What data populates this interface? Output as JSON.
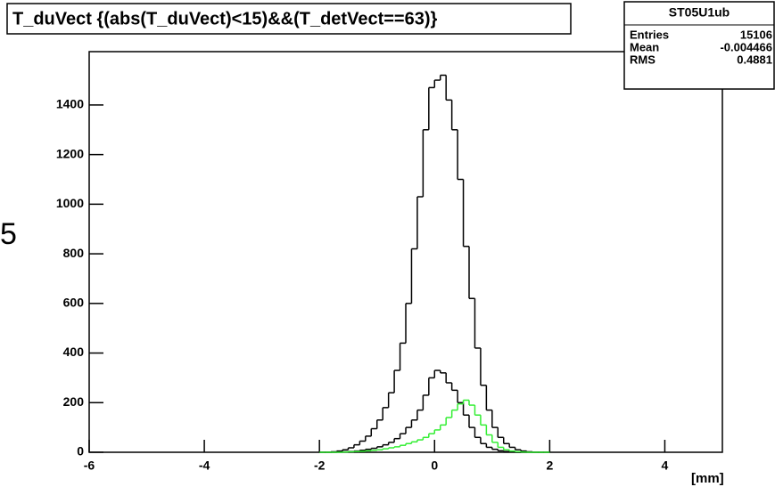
{
  "chart_data": {
    "type": "histogram",
    "title": "T_duVect {(abs(T_duVect)<15)&&(T_detVect==63)}",
    "side_text": "5",
    "x_label": "[mm]",
    "stats": {
      "name": "ST05U1ub",
      "rows": [
        [
          "Entries",
          "15106"
        ],
        [
          "Mean",
          "-0.004466"
        ],
        [
          "RMS",
          "0.4881"
        ]
      ]
    },
    "xlim": [
      -6,
      5
    ],
    "xticks": [
      -6,
      -4,
      -2,
      0,
      2,
      4
    ],
    "ylim": [
      0,
      1615
    ],
    "yticks": [
      0,
      200,
      400,
      600,
      800,
      1000,
      1200,
      1400
    ],
    "bins": [
      -2,
      -1.9,
      -1.8,
      -1.7,
      -1.6,
      -1.5,
      -1.4,
      -1.3,
      -1.2,
      -1.1,
      -1,
      -0.9,
      -0.8,
      -0.7,
      -0.6,
      -0.5,
      -0.4,
      -0.3,
      -0.2,
      -0.1,
      0,
      0.1,
      0.2,
      0.3,
      0.4,
      0.5,
      0.6,
      0.7,
      0.8,
      0.9,
      1,
      1.1,
      1.2,
      1.3,
      1.4,
      1.5,
      1.6,
      1.7,
      1.8,
      1.9,
      2
    ],
    "series": [
      {
        "color": "#000000",
        "values": [
          0,
          0,
          2,
          5,
          10,
          18,
          30,
          45,
          65,
          95,
          130,
          180,
          240,
          330,
          440,
          600,
          820,
          1030,
          1300,
          1470,
          1500,
          1520,
          1420,
          1300,
          1100,
          830,
          620,
          420,
          270,
          170,
          100,
          60,
          35,
          20,
          10,
          5,
          2,
          0,
          0,
          0
        ]
      },
      {
        "color": "#000000",
        "values": [
          0,
          0,
          0,
          1,
          2,
          3,
          5,
          8,
          12,
          16,
          22,
          30,
          40,
          55,
          75,
          100,
          130,
          170,
          230,
          300,
          330,
          320,
          280,
          250,
          200,
          150,
          100,
          60,
          35,
          20,
          12,
          6,
          3,
          1,
          0,
          0,
          0,
          0,
          0,
          0
        ]
      },
      {
        "color": "#33ee33",
        "values": [
          0,
          0,
          0,
          0,
          1,
          2,
          3,
          4,
          6,
          8,
          10,
          14,
          18,
          22,
          28,
          35,
          42,
          50,
          60,
          75,
          90,
          110,
          140,
          170,
          195,
          210,
          190,
          150,
          110,
          70,
          40,
          20,
          10,
          5,
          2,
          1,
          0,
          0,
          0,
          0
        ]
      }
    ]
  }
}
